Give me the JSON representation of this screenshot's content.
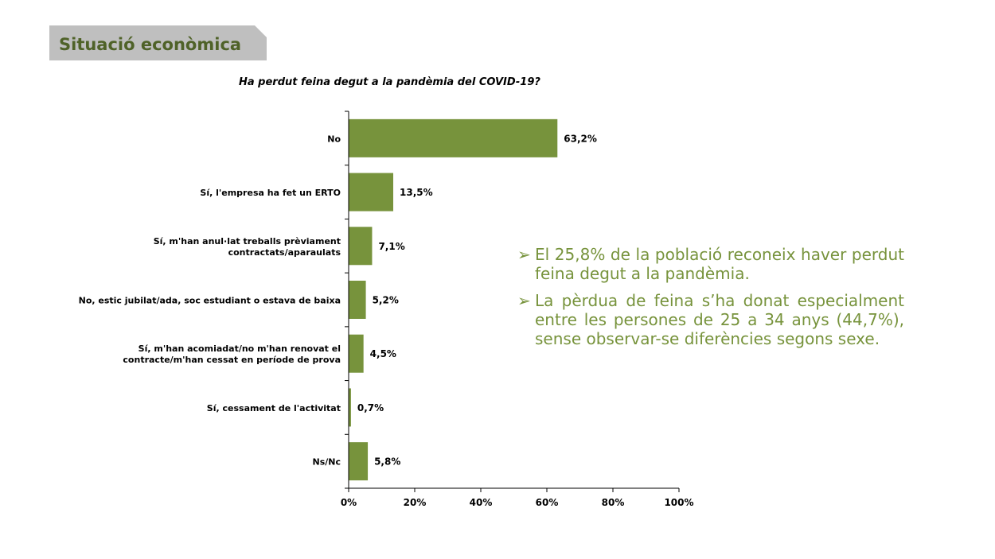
{
  "header": {
    "section_title": "Situació econòmica"
  },
  "colors": {
    "bar": "#77933c",
    "header_bg": "#bfbfbf",
    "header_text": "#4f6228",
    "note_text": "#77933c"
  },
  "notes": {
    "bullet_icon": "arrow-bullet-icon",
    "items": [
      "El 25,8% de la població reconeix haver perdut feina degut a la pandèmia.",
      "La pèrdua de feina s’ha donat especialment entre les persones de 25 a 34 anys (44,7%), sense observar-se diferències segons sexe."
    ]
  },
  "chart_data": {
    "type": "bar",
    "orientation": "horizontal",
    "title": "Ha perdut feina degut a la pandèmia del COVID-19?",
    "categories": [
      [
        "No"
      ],
      [
        "Sí, l'empresa ha fet un ERTO"
      ],
      [
        "Sí, m'han anul·lat treballs prèviament",
        "contractats/aparaulats"
      ],
      [
        "No, estic jubilat/ada, soc estudiant o estava de baixa"
      ],
      [
        "Sí, m'han acomiadat/no m'han renovat el",
        "contracte/m'han cessat en període de prova"
      ],
      [
        "Sí, cessament de l'activitat"
      ],
      [
        "Ns/Nc"
      ]
    ],
    "values": [
      63.2,
      13.5,
      7.1,
      5.2,
      4.5,
      0.7,
      5.8
    ],
    "value_labels": [
      "63,2%",
      "13,5%",
      "7,1%",
      "5,2%",
      "4,5%",
      "0,7%",
      "5,8%"
    ],
    "xlim": [
      0,
      100
    ],
    "xticks": [
      0,
      20,
      40,
      60,
      80,
      100
    ],
    "xtick_labels": [
      "0%",
      "20%",
      "40%",
      "60%",
      "80%",
      "100%"
    ],
    "grid": false,
    "legend": "none"
  }
}
